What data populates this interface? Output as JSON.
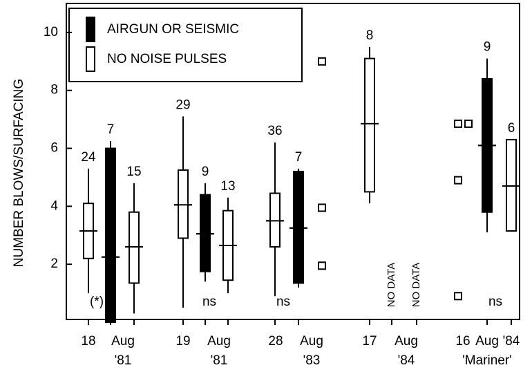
{
  "chart_data": {
    "type": "box",
    "ylabel": "NUMBER BLOWS/SURFACING",
    "ylim": [
      0,
      11
    ],
    "yticks": [
      2,
      4,
      6,
      8,
      10
    ],
    "series": [
      {
        "name": "AIRGUN OR SEISMIC",
        "color": "#000000"
      },
      {
        "name": "NO NOISE PULSES",
        "color": "#ffffff"
      }
    ],
    "columns": [
      {
        "kind": "box",
        "series": 1,
        "n": 24,
        "whisker": [
          1.0,
          5.3
        ],
        "box": [
          2.2,
          4.1
        ],
        "mean": 3.15
      },
      {
        "kind": "box",
        "series": 0,
        "n": 7,
        "whisker": [
          0,
          6.25
        ],
        "box": [
          0,
          6.0
        ],
        "mean": 2.25,
        "note": "(*)"
      },
      {
        "kind": "box",
        "series": 1,
        "n": 15,
        "whisker": [
          0.3,
          4.8
        ],
        "box": [
          1.35,
          3.8
        ],
        "mean": 2.6
      },
      {
        "kind": "box",
        "series": 1,
        "n": 29,
        "whisker": [
          0.5,
          7.1
        ],
        "box": [
          2.9,
          5.25
        ],
        "mean": 4.05
      },
      {
        "kind": "box",
        "series": 0,
        "n": 9,
        "whisker": [
          1.4,
          4.8
        ],
        "box": [
          1.75,
          4.4
        ],
        "mean": 3.05,
        "note": "ns"
      },
      {
        "kind": "box",
        "series": 1,
        "n": 13,
        "whisker": [
          1.0,
          4.3
        ],
        "box": [
          1.45,
          3.85
        ],
        "mean": 2.65
      },
      {
        "kind": "box",
        "series": 1,
        "n": 36,
        "whisker": [
          0.9,
          6.2
        ],
        "box": [
          2.6,
          4.45
        ],
        "mean": 3.5,
        "note": "ns"
      },
      {
        "kind": "box",
        "series": 0,
        "n": 7,
        "whisker": [
          1.2,
          5.3
        ],
        "box": [
          1.35,
          5.2
        ],
        "mean": 3.25
      },
      {
        "kind": "points",
        "values": [
          9.0,
          3.95,
          1.95
        ]
      },
      {
        "kind": "box",
        "series": 1,
        "n": 8,
        "whisker": [
          4.1,
          9.5
        ],
        "box": [
          4.5,
          9.1
        ],
        "mean": 6.85
      },
      {
        "kind": "nodata",
        "text": "NO DATA"
      },
      {
        "kind": "nodata",
        "text": "NO DATA"
      },
      {
        "kind": "points",
        "values": [
          6.85,
          4.9,
          0.9
        ]
      },
      {
        "kind": "points",
        "values": [
          6.85
        ]
      },
      {
        "kind": "box",
        "series": 0,
        "n": 9,
        "whisker": [
          3.1,
          9.1
        ],
        "box": [
          3.8,
          8.4
        ],
        "mean": 6.1,
        "note": "ns"
      },
      {
        "kind": "box",
        "series": 1,
        "n": 6,
        "box": [
          3.15,
          6.3
        ],
        "mean": 4.7
      }
    ],
    "x_labels": [
      "18",
      "Aug",
      "19",
      "Aug",
      "28",
      "Aug",
      "17",
      "Aug",
      "16",
      "Aug",
      "'84"
    ],
    "x_labels_2": [
      "'81",
      "'81",
      "'83",
      "'84",
      "'Mariner'"
    ]
  }
}
